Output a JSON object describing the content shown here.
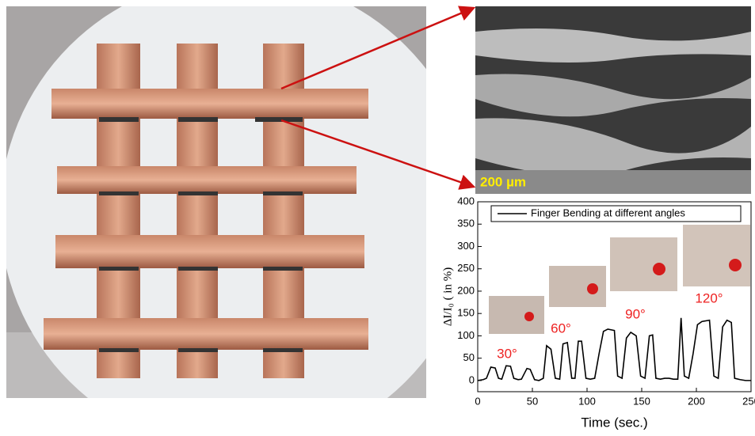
{
  "sem_image": {
    "scale_label": "200 µm"
  },
  "chart_data": {
    "type": "line",
    "xlabel": "Time (sec.)",
    "ylabel": "ΔI/I₀ ( in %)",
    "xlim": [
      0,
      250
    ],
    "xticks": [
      0,
      50,
      100,
      150,
      200,
      250
    ],
    "ylim": [
      -25,
      400
    ],
    "yticks": [
      0,
      50,
      100,
      150,
      200,
      250,
      300,
      350,
      400
    ],
    "legend": "top",
    "annotations": [
      "30°",
      "60°",
      "90°",
      "120°"
    ],
    "series": [
      {
        "name": "Finger Bending at different angles",
        "color": "#000000",
        "x": [
          0,
          5,
          8,
          12,
          16,
          19,
          22,
          26,
          30,
          33,
          37,
          40,
          45,
          48,
          52,
          56,
          60,
          63,
          67,
          71,
          75,
          78,
          82,
          86,
          89,
          92,
          95,
          99,
          103,
          107,
          111,
          115,
          119,
          125,
          128,
          132,
          136,
          140,
          145,
          149,
          153,
          157,
          160,
          163,
          167,
          171,
          175,
          179,
          183,
          186,
          189,
          193,
          197,
          201,
          205,
          212,
          216,
          220,
          224,
          228,
          232,
          235,
          240,
          245,
          250
        ],
        "values": [
          0,
          2,
          5,
          30,
          28,
          5,
          3,
          33,
          32,
          5,
          2,
          3,
          27,
          25,
          2,
          0,
          5,
          78,
          70,
          5,
          3,
          82,
          85,
          5,
          5,
          88,
          88,
          5,
          3,
          5,
          60,
          110,
          115,
          112,
          10,
          5,
          95,
          108,
          100,
          10,
          5,
          100,
          102,
          5,
          3,
          5,
          5,
          3,
          3,
          140,
          10,
          5,
          60,
          125,
          132,
          135,
          10,
          5,
          120,
          135,
          130,
          5,
          2,
          0,
          0
        ]
      }
    ]
  }
}
